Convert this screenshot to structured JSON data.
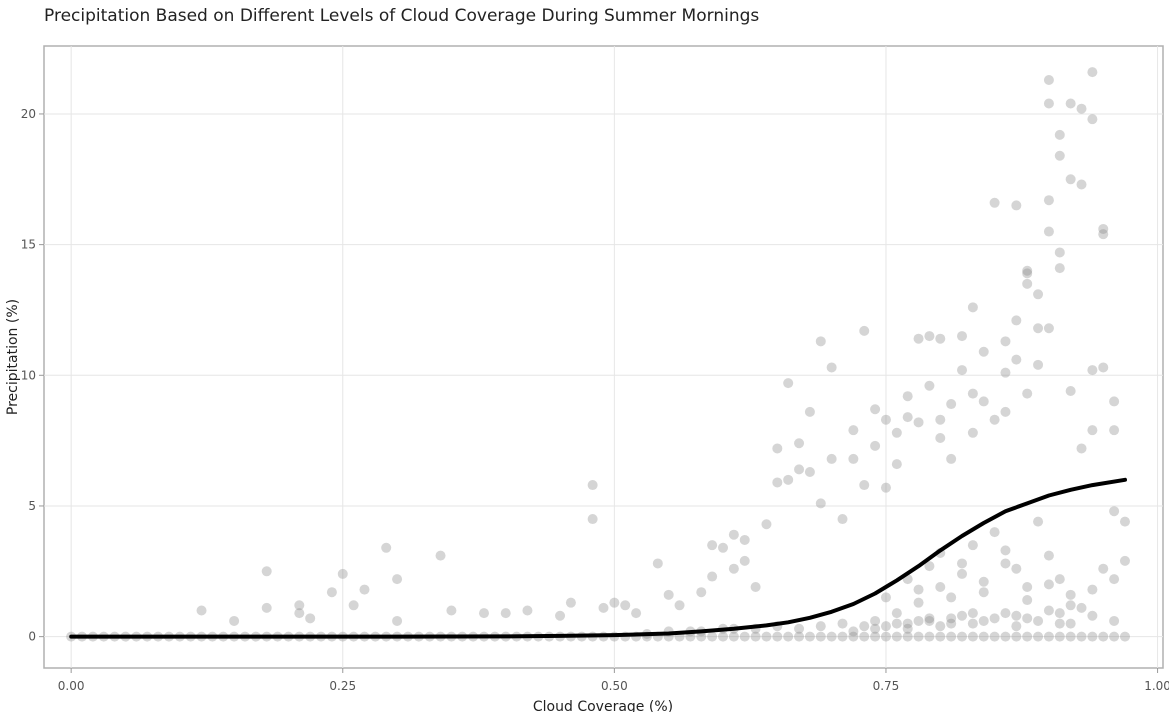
{
  "chart_data": {
    "type": "scatter",
    "title": "Precipitation Based on Different Levels of Cloud Coverage During Summer Mornings",
    "xlabel": "Cloud Coverage (%)",
    "ylabel": "Precipitation (%)",
    "xlim": [
      -0.025,
      1.005
    ],
    "ylim": [
      -1.2,
      22.6
    ],
    "x_ticks": [
      0.0,
      0.25,
      0.5,
      0.75,
      1.0
    ],
    "x_tick_labels": [
      "0.00",
      "0.25",
      "0.50",
      "0.75",
      "1.00"
    ],
    "y_ticks": [
      0,
      5,
      10,
      15,
      20
    ],
    "y_tick_labels": [
      "0",
      "5",
      "10",
      "15",
      "20"
    ],
    "grid": true,
    "legend": "none",
    "point_color": "#888888",
    "point_opacity": 0.35,
    "line_color": "#000000",
    "series": [
      {
        "kind": "points",
        "x": [
          0.0,
          0.01,
          0.02,
          0.03,
          0.04,
          0.05,
          0.06,
          0.07,
          0.08,
          0.09,
          0.1,
          0.11,
          0.12,
          0.13,
          0.14,
          0.15,
          0.16,
          0.17,
          0.18,
          0.19,
          0.2,
          0.21,
          0.22,
          0.23,
          0.24,
          0.25,
          0.26,
          0.27,
          0.28,
          0.29,
          0.3,
          0.31,
          0.32,
          0.33,
          0.34,
          0.35,
          0.36,
          0.37,
          0.38,
          0.39,
          0.4,
          0.41,
          0.42,
          0.43,
          0.44,
          0.45,
          0.46,
          0.47,
          0.48,
          0.49,
          0.5,
          0.51,
          0.52,
          0.53,
          0.54,
          0.55,
          0.56,
          0.57,
          0.58,
          0.59,
          0.6,
          0.61,
          0.62,
          0.63,
          0.64,
          0.65,
          0.66,
          0.67,
          0.68,
          0.69,
          0.7,
          0.71,
          0.72,
          0.73,
          0.74,
          0.75,
          0.76,
          0.77,
          0.78,
          0.79,
          0.8,
          0.81,
          0.82,
          0.83,
          0.84,
          0.85,
          0.86,
          0.87,
          0.88,
          0.89,
          0.9,
          0.91,
          0.92,
          0.93,
          0.94,
          0.95,
          0.96,
          0.97,
          0.12,
          0.15,
          0.18,
          0.18,
          0.21,
          0.21,
          0.22,
          0.24,
          0.25,
          0.26,
          0.27,
          0.29,
          0.3,
          0.3,
          0.34,
          0.35,
          0.38,
          0.4,
          0.42,
          0.45,
          0.46,
          0.48,
          0.48,
          0.49,
          0.5,
          0.51,
          0.52,
          0.54,
          0.55,
          0.56,
          0.58,
          0.59,
          0.59,
          0.6,
          0.61,
          0.61,
          0.62,
          0.62,
          0.63,
          0.64,
          0.65,
          0.65,
          0.66,
          0.66,
          0.67,
          0.67,
          0.68,
          0.68,
          0.69,
          0.69,
          0.7,
          0.7,
          0.71,
          0.72,
          0.72,
          0.73,
          0.73,
          0.74,
          0.74,
          0.75,
          0.75,
          0.76,
          0.76,
          0.77,
          0.77,
          0.78,
          0.78,
          0.79,
          0.79,
          0.8,
          0.8,
          0.8,
          0.81,
          0.81,
          0.82,
          0.82,
          0.83,
          0.83,
          0.83,
          0.84,
          0.84,
          0.85,
          0.85,
          0.86,
          0.86,
          0.86,
          0.87,
          0.87,
          0.87,
          0.88,
          0.88,
          0.88,
          0.88,
          0.89,
          0.89,
          0.89,
          0.9,
          0.9,
          0.9,
          0.9,
          0.9,
          0.91,
          0.91,
          0.91,
          0.91,
          0.92,
          0.92,
          0.92,
          0.93,
          0.93,
          0.93,
          0.94,
          0.94,
          0.94,
          0.94,
          0.95,
          0.95,
          0.95,
          0.96,
          0.96,
          0.96,
          0.97,
          0.97,
          0.75,
          0.77,
          0.78,
          0.79,
          0.8,
          0.81,
          0.82,
          0.83,
          0.84,
          0.85,
          0.86,
          0.87,
          0.88,
          0.89,
          0.9,
          0.91,
          0.92,
          0.76,
          0.78,
          0.8,
          0.82,
          0.84,
          0.86,
          0.88,
          0.9,
          0.92,
          0.94,
          0.95,
          0.96,
          0.85,
          0.87,
          0.89,
          0.91,
          0.93,
          0.81,
          0.83,
          0.79,
          0.77,
          0.74,
          0.73,
          0.71,
          0.69,
          0.67,
          0.65,
          0.63,
          0.61,
          0.6,
          0.58,
          0.57,
          0.55,
          0.53,
          0.72,
          0.74,
          0.75,
          0.76,
          0.78,
          0.79,
          0.81,
          0.82,
          0.84,
          0.86,
          0.88,
          0.9,
          0.92,
          0.94,
          0.96,
          0.77,
          0.8,
          0.83,
          0.87,
          0.91
        ],
        "y": [
          0,
          0,
          0,
          0,
          0,
          0,
          0,
          0,
          0,
          0,
          0,
          0,
          0,
          0,
          0,
          0,
          0,
          0,
          0,
          0,
          0,
          0,
          0,
          0,
          0,
          0,
          0,
          0,
          0,
          0,
          0,
          0,
          0,
          0,
          0,
          0,
          0,
          0,
          0,
          0,
          0,
          0,
          0,
          0,
          0,
          0,
          0,
          0,
          0,
          0,
          0,
          0,
          0,
          0,
          0,
          0,
          0,
          0,
          0,
          0,
          0,
          0,
          0,
          0,
          0,
          0,
          0,
          0,
          0,
          0,
          0,
          0,
          0,
          0,
          0,
          0,
          0,
          0,
          0,
          0,
          0,
          0,
          0,
          0,
          0,
          0,
          0,
          0,
          0,
          0,
          0,
          0,
          0,
          0,
          0,
          0,
          0,
          0,
          1.0,
          0.6,
          2.5,
          1.1,
          1.2,
          0.9,
          0.7,
          1.7,
          2.4,
          1.2,
          1.8,
          3.4,
          2.2,
          0.6,
          3.1,
          1.0,
          0.9,
          0.9,
          1.0,
          0.8,
          1.3,
          5.8,
          4.5,
          1.1,
          1.3,
          1.2,
          0.9,
          2.8,
          1.6,
          1.2,
          1.7,
          3.5,
          2.3,
          3.4,
          3.9,
          2.6,
          3.7,
          2.9,
          1.9,
          4.3,
          7.2,
          5.9,
          9.7,
          6.0,
          7.4,
          6.4,
          8.6,
          6.3,
          11.3,
          5.1,
          10.3,
          6.8,
          4.5,
          6.8,
          7.9,
          11.7,
          5.8,
          8.7,
          7.3,
          8.3,
          5.7,
          7.8,
          6.6,
          9.2,
          8.4,
          11.4,
          8.2,
          9.6,
          11.5,
          11.4,
          7.6,
          8.3,
          8.9,
          6.8,
          11.5,
          10.2,
          9.3,
          7.8,
          12.6,
          9.0,
          10.9,
          16.6,
          8.3,
          10.1,
          8.6,
          11.3,
          16.5,
          12.1,
          10.6,
          14.0,
          13.9,
          13.5,
          9.3,
          13.1,
          11.8,
          10.4,
          21.3,
          20.4,
          16.7,
          15.5,
          11.8,
          19.2,
          18.4,
          14.7,
          14.1,
          20.4,
          17.5,
          9.4,
          20.2,
          17.3,
          7.2,
          21.6,
          19.8,
          10.2,
          7.9,
          15.6,
          15.4,
          10.3,
          9.0,
          7.9,
          4.8,
          4.4,
          2.9,
          1.5,
          2.2,
          1.8,
          2.7,
          3.2,
          1.5,
          2.8,
          3.5,
          2.1,
          4.0,
          3.3,
          2.6,
          1.9,
          4.4,
          3.1,
          2.2,
          1.6,
          0.9,
          1.3,
          1.9,
          2.4,
          1.7,
          2.8,
          1.4,
          2.0,
          1.2,
          1.8,
          2.6,
          2.2,
          0.7,
          0.8,
          0.6,
          0.9,
          1.1,
          0.7,
          0.9,
          0.6,
          0.5,
          0.6,
          0.4,
          0.5,
          0.4,
          0.3,
          0.4,
          0.3,
          0.3,
          0.3,
          0.2,
          0.2,
          0.2,
          0.1,
          0.2,
          0.3,
          0.4,
          0.5,
          0.6,
          0.7,
          0.5,
          0.8,
          0.6,
          0.9,
          0.7,
          1.0,
          0.5,
          0.8,
          0.6,
          0.3,
          0.4,
          0.5,
          0.4,
          0.5
        ]
      },
      {
        "kind": "line",
        "x": [
          0.0,
          0.1,
          0.2,
          0.3,
          0.4,
          0.45,
          0.5,
          0.55,
          0.58,
          0.61,
          0.64,
          0.66,
          0.68,
          0.7,
          0.72,
          0.74,
          0.76,
          0.78,
          0.8,
          0.82,
          0.84,
          0.86,
          0.88,
          0.9,
          0.92,
          0.94,
          0.97
        ],
        "y": [
          0,
          0,
          0,
          0,
          0.01,
          0.03,
          0.06,
          0.12,
          0.2,
          0.3,
          0.43,
          0.55,
          0.72,
          0.95,
          1.25,
          1.65,
          2.15,
          2.7,
          3.3,
          3.85,
          4.35,
          4.8,
          5.1,
          5.4,
          5.62,
          5.8,
          6.0
        ]
      }
    ]
  }
}
